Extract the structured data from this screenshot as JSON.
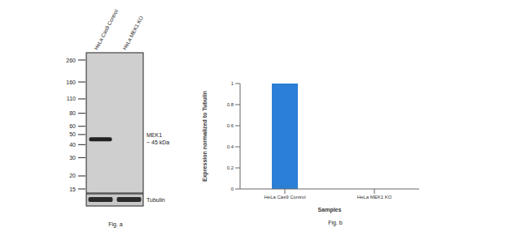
{
  "blot": {
    "lanes": [
      {
        "label": "HeLa Cas9 Control",
        "MEK1_band": true
      },
      {
        "label": "HeLa MEK1 KO",
        "MEK1_band": false
      }
    ],
    "markers": [
      260,
      160,
      110,
      80,
      60,
      50,
      40,
      30,
      20,
      15
    ],
    "target": {
      "label": "MEK1",
      "size_label": "~ 45 kDa",
      "kda": 45
    },
    "loading_control": "Tubulin",
    "caption": "Fig. a"
  },
  "chart_data": {
    "type": "bar",
    "categories": [
      "HeLa Cas9 Control",
      "HeLa MEK1 KO"
    ],
    "values": [
      1,
      0
    ],
    "color": "#2b7fd6",
    "ylim": [
      0,
      1
    ],
    "yticks": [
      0,
      0.2,
      0.4,
      0.6,
      0.8,
      1
    ],
    "y_label": "Expression normalized to Tubulin",
    "x_label": "Samples",
    "caption": "Fig. b",
    "grid": false
  }
}
